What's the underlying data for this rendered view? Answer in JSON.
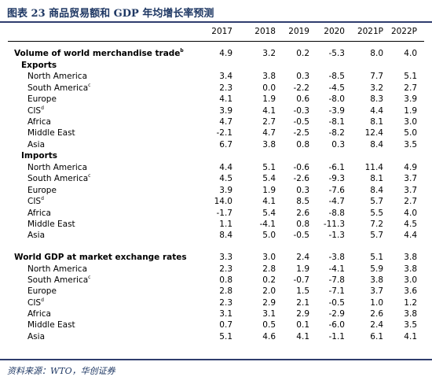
{
  "title": "图表 23   商品贸易额和 GDP 年均增长率预测",
  "columns": [
    "2017",
    "2018",
    "2019",
    "2020",
    "2021P",
    "2022P"
  ],
  "rows": [
    {
      "label": "Volume of world merchandise trade",
      "sup": "b",
      "level": 0,
      "values": [
        "4.9",
        "3.2",
        "0.2",
        "-5.3",
        "8.0",
        "4.0"
      ]
    },
    {
      "label": "Exports",
      "sup": "",
      "level": 1,
      "values": []
    },
    {
      "label": "North America",
      "sup": "",
      "level": 2,
      "values": [
        "3.4",
        "3.8",
        "0.3",
        "-8.5",
        "7.7",
        "5.1"
      ]
    },
    {
      "label": "South America",
      "sup": "c",
      "level": 2,
      "values": [
        "2.3",
        "0.0",
        "-2.2",
        "-4.5",
        "3.2",
        "2.7"
      ]
    },
    {
      "label": "Europe",
      "sup": "",
      "level": 2,
      "values": [
        "4.1",
        "1.9",
        "0.6",
        "-8.0",
        "8.3",
        "3.9"
      ]
    },
    {
      "label": "CIS",
      "sup": "d",
      "level": 2,
      "values": [
        "3.9",
        "4.1",
        "-0.3",
        "-3.9",
        "4.4",
        "1.9"
      ]
    },
    {
      "label": "Africa",
      "sup": "",
      "level": 2,
      "values": [
        "4.7",
        "2.7",
        "-0.5",
        "-8.1",
        "8.1",
        "3.0"
      ]
    },
    {
      "label": "Middle East",
      "sup": "",
      "level": 2,
      "values": [
        "-2.1",
        "4.7",
        "-2.5",
        "-8.2",
        "12.4",
        "5.0"
      ]
    },
    {
      "label": "Asia",
      "sup": "",
      "level": 2,
      "values": [
        "6.7",
        "3.8",
        "0.8",
        "0.3",
        "8.4",
        "3.5"
      ]
    },
    {
      "label": "Imports",
      "sup": "",
      "level": 1,
      "values": []
    },
    {
      "label": "North America",
      "sup": "",
      "level": 2,
      "values": [
        "4.4",
        "5.1",
        "-0.6",
        "-6.1",
        "11.4",
        "4.9"
      ]
    },
    {
      "label": "South America",
      "sup": "c",
      "level": 2,
      "values": [
        "4.5",
        "5.4",
        "-2.6",
        "-9.3",
        "8.1",
        "3.7"
      ]
    },
    {
      "label": "Europe",
      "sup": "",
      "level": 2,
      "values": [
        "3.9",
        "1.9",
        "0.3",
        "-7.6",
        "8.4",
        "3.7"
      ]
    },
    {
      "label": "CIS",
      "sup": "d",
      "level": 2,
      "values": [
        "14.0",
        "4.1",
        "8.5",
        "-4.7",
        "5.7",
        "2.7"
      ]
    },
    {
      "label": "Africa",
      "sup": "",
      "level": 2,
      "values": [
        "-1.7",
        "5.4",
        "2.6",
        "-8.8",
        "5.5",
        "4.0"
      ]
    },
    {
      "label": "Middle East",
      "sup": "",
      "level": 2,
      "values": [
        "1.1",
        "-4.1",
        "0.8",
        "-11.3",
        "7.2",
        "4.5"
      ]
    },
    {
      "label": "Asia",
      "sup": "",
      "level": 2,
      "values": [
        "8.4",
        "5.0",
        "-0.5",
        "-1.3",
        "5.7",
        "4.4"
      ]
    },
    {
      "label": "World GDP at market exchange rates",
      "sup": "",
      "level": 0,
      "values": [
        "3.3",
        "3.0",
        "2.4",
        "-3.8",
        "5.1",
        "3.8"
      ]
    },
    {
      "label": "North America",
      "sup": "",
      "level": 2,
      "values": [
        "2.3",
        "2.8",
        "1.9",
        "-4.1",
        "5.9",
        "3.8"
      ]
    },
    {
      "label": "South America",
      "sup": "c",
      "level": 2,
      "values": [
        "0.8",
        "0.2",
        "-0.7",
        "-7.8",
        "3.8",
        "3.0"
      ]
    },
    {
      "label": "Europe",
      "sup": "",
      "level": 2,
      "values": [
        "2.8",
        "2.0",
        "1.5",
        "-7.1",
        "3.7",
        "3.6"
      ]
    },
    {
      "label": "CIS",
      "sup": "d",
      "level": 2,
      "values": [
        "2.3",
        "2.9",
        "2.1",
        "-0.5",
        "1.0",
        "1.2"
      ]
    },
    {
      "label": "Africa",
      "sup": "",
      "level": 2,
      "values": [
        "3.1",
        "3.1",
        "2.9",
        "-2.9",
        "2.6",
        "3.8"
      ]
    },
    {
      "label": "Middle East",
      "sup": "",
      "level": 2,
      "values": [
        "0.7",
        "0.5",
        "0.1",
        "-6.0",
        "2.4",
        "3.5"
      ]
    },
    {
      "label": "Asia",
      "sup": "",
      "level": 2,
      "values": [
        "5.1",
        "4.6",
        "4.1",
        "-1.1",
        "6.1",
        "4.1"
      ]
    }
  ],
  "source": "资料来源：WTO，华创证券"
}
